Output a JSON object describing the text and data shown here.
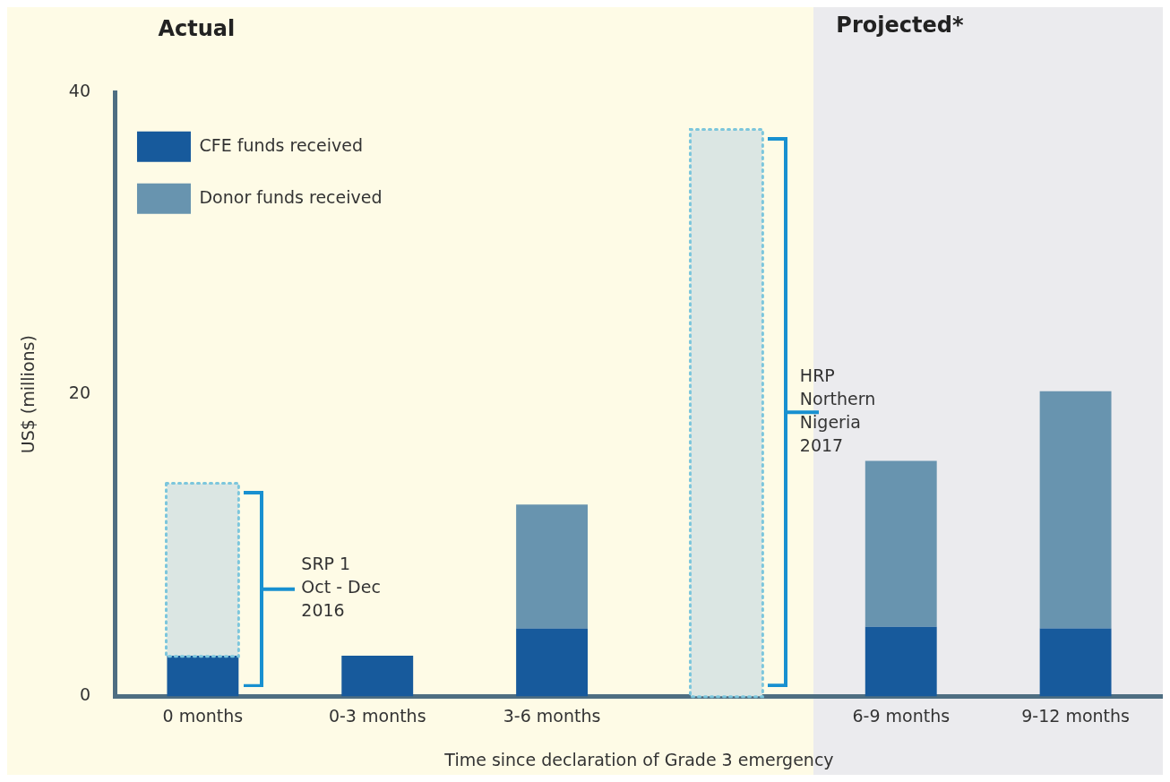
{
  "chart_data": {
    "type": "bar",
    "stacked": true,
    "categories": [
      "0 months",
      "0-3 months",
      "3-6 months",
      null,
      "6-9 months",
      "9-12 months"
    ],
    "series": [
      {
        "name": "CFE funds received",
        "color": "#175a9c",
        "values": [
          2.7,
          2.7,
          4.5,
          null,
          4.6,
          4.5
        ]
      },
      {
        "name": "Donor funds received",
        "color": "#6894af",
        "values": [
          null,
          null,
          8.2,
          null,
          11.0,
          15.7
        ]
      },
      {
        "color": "#dbe6e3",
        "line_style": "dotted",
        "values": [
          11.4,
          null,
          null,
          37.5,
          null,
          null
        ]
      }
    ],
    "ylabel": "US$ (millions)",
    "xlabel": "Time since declaration of Grade 3 emergency",
    "ylim": [
      0,
      40
    ],
    "yticks": [
      0,
      20,
      40
    ],
    "grid": false,
    "legend": "top left",
    "annotations": [
      "Actual",
      "Projected*",
      "SRP 1\nOct - Dec\n2016",
      "HRP\nNorthern\nNigeria\n2017"
    ]
  }
}
